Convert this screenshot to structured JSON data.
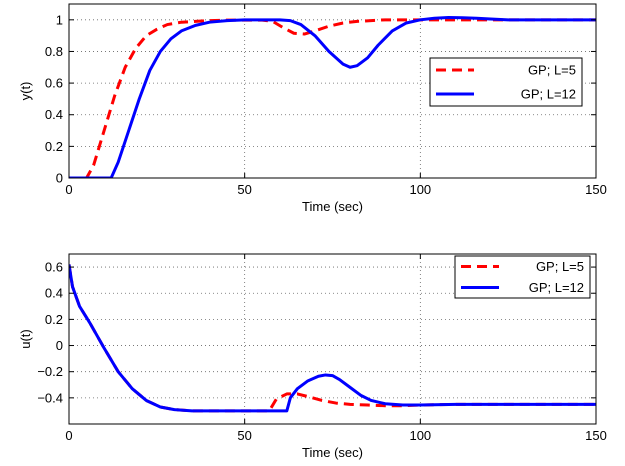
{
  "chart_data": [
    {
      "type": "line",
      "xlabel": "Time (sec)",
      "ylabel": "y(t)",
      "xlim": [
        0,
        150
      ],
      "ylim": [
        0,
        1.1
      ],
      "xticks": [
        0,
        50,
        100,
        150
      ],
      "yticks": [
        0,
        0.2,
        0.4,
        0.6,
        0.8,
        1
      ],
      "grid": true,
      "legend_position": "right",
      "series": [
        {
          "name": "GP; L=5",
          "color": "#ff0000",
          "dash": "dashed",
          "x": [
            0,
            5,
            7,
            10,
            13,
            16,
            19,
            22,
            25,
            28,
            32,
            36,
            40,
            45,
            50,
            55,
            58,
            61,
            64,
            67,
            70,
            74,
            78,
            82,
            86,
            90,
            95,
            100,
            105,
            110,
            120,
            130,
            140,
            150
          ],
          "y": [
            0,
            0,
            0.08,
            0.3,
            0.52,
            0.7,
            0.82,
            0.9,
            0.94,
            0.97,
            0.985,
            0.99,
            0.995,
            0.998,
            0.998,
            0.998,
            0.99,
            0.95,
            0.915,
            0.91,
            0.93,
            0.96,
            0.98,
            0.99,
            0.995,
            1.0,
            1.0,
            1.0,
            1.0,
            1.0,
            1.0,
            1.0,
            1.0,
            1.0
          ]
        },
        {
          "name": "GP; L=12",
          "color": "#0000ff",
          "dash": "solid",
          "x": [
            0,
            12,
            14,
            17,
            20,
            23,
            26,
            29,
            32,
            36,
            40,
            45,
            50,
            55,
            60,
            63,
            66,
            70,
            74,
            78,
            80,
            82,
            85,
            88,
            92,
            96,
            100,
            104,
            108,
            112,
            116,
            120,
            125,
            130,
            140,
            150
          ],
          "y": [
            0,
            0,
            0.1,
            0.3,
            0.5,
            0.68,
            0.8,
            0.88,
            0.93,
            0.965,
            0.985,
            0.995,
            1.0,
            1.0,
            1.0,
            0.995,
            0.97,
            0.9,
            0.8,
            0.72,
            0.7,
            0.71,
            0.76,
            0.84,
            0.93,
            0.98,
            1.0,
            1.01,
            1.015,
            1.013,
            1.01,
            1.005,
            1.0,
            1.0,
            1.0,
            1.0
          ]
        }
      ]
    },
    {
      "type": "line",
      "xlabel": "Time (sec)",
      "ylabel": "u(t)",
      "xlim": [
        0,
        150
      ],
      "ylim": [
        -0.6,
        0.7
      ],
      "xticks": [
        0,
        50,
        100,
        150
      ],
      "yticks": [
        -0.4,
        -0.2,
        0,
        0.2,
        0.4,
        0.6
      ],
      "grid": true,
      "legend_position": "top-right",
      "series": [
        {
          "name": "GP; L=5",
          "color": "#ff0000",
          "dash": "dashed",
          "x": [
            0,
            1,
            3,
            6,
            10,
            14,
            18,
            22,
            26,
            30,
            35,
            40,
            45,
            50,
            55,
            57,
            59,
            62,
            65,
            68,
            72,
            76,
            80,
            85,
            90,
            95,
            100,
            110,
            120,
            130,
            140,
            150
          ],
          "y": [
            0.62,
            0.45,
            0.3,
            0.17,
            -0.02,
            -0.2,
            -0.33,
            -0.42,
            -0.47,
            -0.49,
            -0.5,
            -0.5,
            -0.5,
            -0.5,
            -0.5,
            -0.5,
            -0.41,
            -0.37,
            -0.37,
            -0.39,
            -0.42,
            -0.44,
            -0.45,
            -0.455,
            -0.46,
            -0.46,
            -0.455,
            -0.45,
            -0.45,
            -0.45,
            -0.45,
            -0.45
          ]
        },
        {
          "name": "GP; L=12",
          "color": "#0000ff",
          "dash": "solid",
          "x": [
            0,
            1,
            3,
            6,
            10,
            14,
            18,
            22,
            26,
            30,
            35,
            40,
            45,
            50,
            55,
            60,
            62,
            63,
            65,
            68,
            71,
            73,
            75,
            77,
            80,
            83,
            86,
            90,
            95,
            100,
            110,
            120,
            130,
            140,
            150
          ],
          "y": [
            0.62,
            0.45,
            0.3,
            0.17,
            -0.02,
            -0.2,
            -0.33,
            -0.42,
            -0.47,
            -0.49,
            -0.5,
            -0.5,
            -0.5,
            -0.5,
            -0.5,
            -0.5,
            -0.5,
            -0.4,
            -0.33,
            -0.27,
            -0.235,
            -0.225,
            -0.23,
            -0.26,
            -0.32,
            -0.38,
            -0.42,
            -0.445,
            -0.455,
            -0.455,
            -0.45,
            -0.45,
            -0.45,
            -0.45,
            -0.45
          ]
        }
      ]
    }
  ]
}
